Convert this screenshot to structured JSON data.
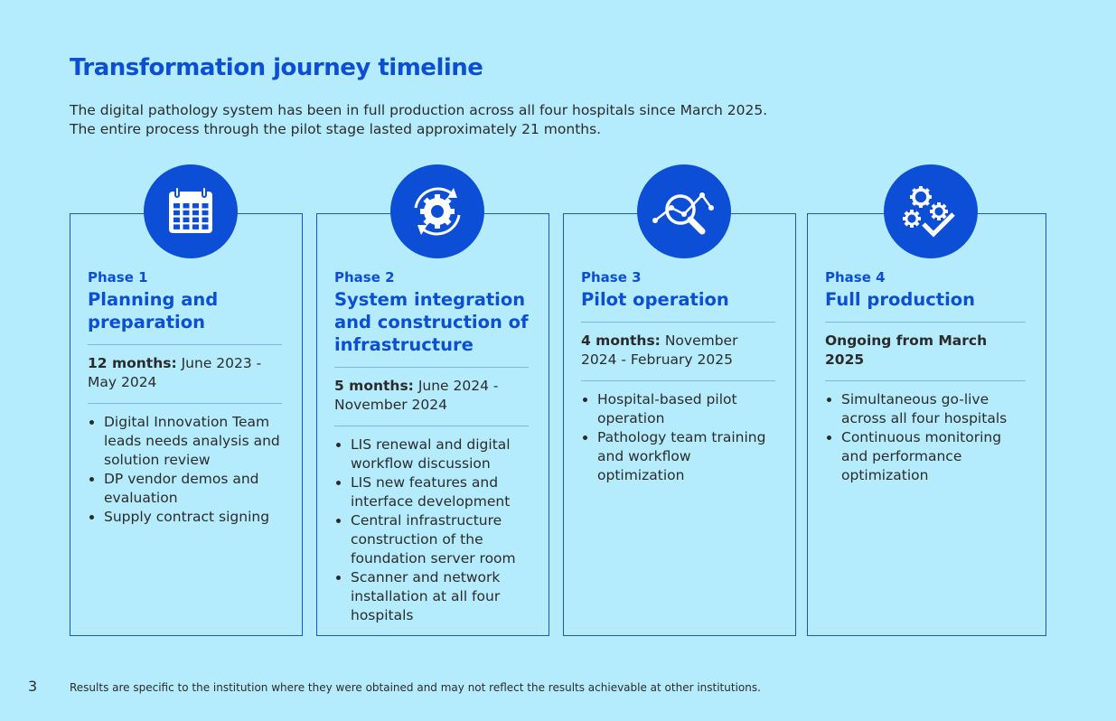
{
  "header": {
    "title": "Transformation journey timeline",
    "intro": [
      "The digital pathology system has been in full production across all four hospitals since March 2025.",
      "The entire process through the pilot stage lasted approximately 21 months."
    ]
  },
  "phases": [
    {
      "label": "Phase 1",
      "title": "Planning and preparation",
      "duration": "12 months:",
      "period": "June 2023 - May 2024",
      "bullets": [
        "Digital Innovation Team leads needs analysis and solution review",
        "DP vendor demos and evaluation",
        "Supply contract signing"
      ]
    },
    {
      "label": "Phase 2",
      "title": "System integration and construction of infrastructure",
      "duration": "5 months:",
      "period": "June 2024 - November 2024",
      "bullets": [
        "LIS renewal and digital workflow discussion",
        "LIS new features and interface development",
        "Central infrastructure construction of the foundation server room",
        "Scanner and network installation at all four hospitals"
      ]
    },
    {
      "label": "Phase 3",
      "title": "Pilot operation",
      "duration": "4 months:",
      "period": "November 2024 - February 2025",
      "bullets": [
        "Hospital-based pilot operation",
        "Pathology team training and workflow optimization"
      ]
    },
    {
      "label": "Phase 4",
      "title": "Full production",
      "duration": "Ongoing from March 2025",
      "bullets": [
        "Simultaneous go-live across all four hospitals",
        "Continuous monitoring and performance optimization"
      ]
    }
  ],
  "footer": {
    "page_number": "3",
    "disclaimer": "Results are specific to the institution where they were obtained and may not reflect the results achievable at other institutions."
  }
}
